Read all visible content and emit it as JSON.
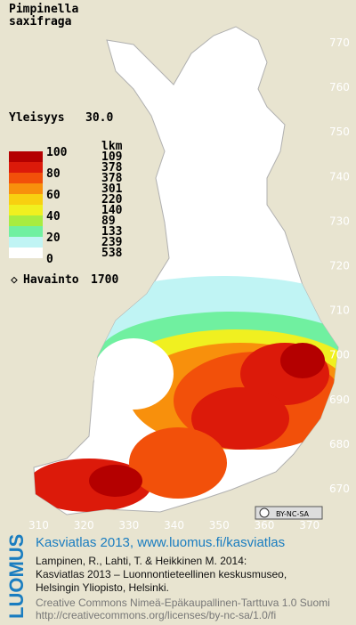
{
  "title": [
    "Pimpinella",
    "saxifraga"
  ],
  "frequency": {
    "label": "Yleisyys",
    "value": "30.0"
  },
  "legend": {
    "header": "lkm",
    "scale": [
      100,
      80,
      60,
      40,
      20,
      0
    ],
    "colors": [
      "#b40000",
      "#dc1a0a",
      "#f2500a",
      "#f8900c",
      "#f8d010",
      "#f0f020",
      "#a8ec40",
      "#70f0a0",
      "#c0f4f4",
      "#ffffff"
    ],
    "counts": [
      109,
      378,
      378,
      301,
      220,
      140,
      89,
      133,
      239,
      538
    ]
  },
  "observations": {
    "label": "Havainto",
    "value": 1700
  },
  "grid": {
    "north": [
      770,
      760,
      750,
      740,
      730,
      720,
      710,
      700,
      690,
      680,
      670
    ],
    "east": [
      310,
      320,
      330,
      340,
      350,
      360,
      370
    ]
  },
  "license_badge": "BY-NC-SA",
  "footer": {
    "brand": "LUOMUS",
    "headline": "Kasviatlas 2013, www.luomus.fi/kasviatlas",
    "citation": [
      "Lampinen, R., Lahti, T. & Heikkinen M. 2014:",
      "Kasviatlas 2013 – Luonnontieteellinen keskusmuseo,",
      "Helsingin Yliopisto, Helsinki."
    ],
    "license": [
      "Creative Commons Nimeä-Epäkaupallinen-Tarttuva 1.0 Suomi",
      "http://creativecommons.org/licenses/by-nc-sa/1.0/fi"
    ]
  }
}
